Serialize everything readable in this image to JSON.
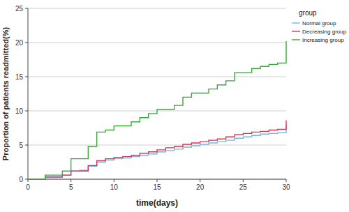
{
  "chart_data": {
    "type": "step",
    "x_label": "time(days)",
    "y_label": "Proportion of patients readmitted(%)",
    "legend_title": "group",
    "legend": "top-right",
    "grid": true,
    "x": [
      0,
      1,
      2,
      3,
      4,
      5,
      6,
      7,
      8,
      9,
      10,
      11,
      12,
      13,
      14,
      15,
      16,
      17,
      18,
      19,
      20,
      21,
      22,
      23,
      24,
      25,
      26,
      27,
      28,
      29,
      30
    ],
    "series": [
      {
        "name": "Normal group",
        "color": "#7ab3e6",
        "values": [
          0,
          0,
          0.4,
          0.4,
          0.6,
          1.2,
          1.3,
          1.9,
          2.5,
          2.8,
          3,
          3.1,
          3.3,
          3.5,
          3.7,
          4,
          4.2,
          4.4,
          4.7,
          4.9,
          5.1,
          5.3,
          5.5,
          5.7,
          6,
          6.2,
          6.4,
          6.6,
          6.7,
          6.8,
          7.9
        ]
      },
      {
        "name": "Decreasing group",
        "color": "#d8344f",
        "values": [
          0,
          0,
          0.3,
          0.3,
          0.6,
          1.2,
          1.2,
          2,
          2.7,
          3,
          3.2,
          3.3,
          3.5,
          3.8,
          4,
          4.3,
          4.6,
          4.8,
          5.1,
          5.3,
          5.5,
          5.7,
          5.9,
          6.2,
          6.5,
          6.7,
          6.9,
          7,
          7.2,
          7.3,
          8.6
        ]
      },
      {
        "name": "Increasing group",
        "color": "#3aa83a",
        "values": [
          0,
          0,
          0.6,
          0.6,
          1.2,
          3,
          3,
          4.8,
          6.9,
          7.2,
          7.8,
          7.8,
          8.4,
          9,
          9.6,
          10.2,
          10.2,
          10.8,
          12,
          12.6,
          12.6,
          13.2,
          13.8,
          14.4,
          15.6,
          15.6,
          16.2,
          16.5,
          16.8,
          17,
          20.2
        ]
      }
    ],
    "xlim": [
      0,
      30
    ],
    "xticks": [
      0,
      5,
      10,
      15,
      20,
      25,
      30
    ],
    "ylim": [
      0,
      25
    ],
    "yticks": [
      0,
      5,
      10,
      15,
      20,
      25
    ]
  }
}
